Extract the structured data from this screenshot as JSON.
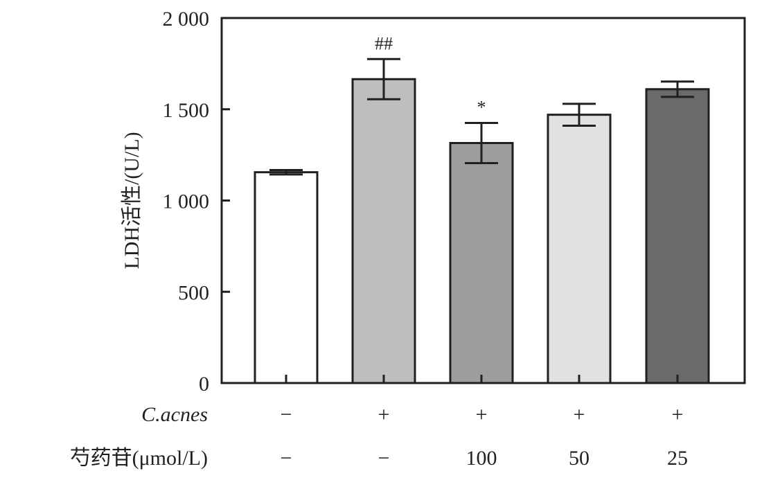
{
  "chart_data": {
    "type": "bar",
    "ylabel": "LDH活性/(U/L)",
    "ylim": [
      0,
      2000
    ],
    "yticks": [
      0,
      500,
      1000,
      1500,
      2000
    ],
    "ytick_labels": [
      "0",
      "500",
      "1 000",
      "1 500",
      "2 000"
    ],
    "grid": false,
    "bars": [
      {
        "value": 1155,
        "error": 12,
        "color": "#ffffff",
        "annotation": ""
      },
      {
        "value": 1665,
        "error": 110,
        "color": "#bcbec0",
        "annotation": "##"
      },
      {
        "value": 1315,
        "error": 110,
        "color": "#9c9d9f",
        "annotation": "*"
      },
      {
        "value": 1470,
        "error": 60,
        "color": "#e1e1e1",
        "annotation": ""
      },
      {
        "value": 1610,
        "error": 42,
        "color": "#6a6a6a",
        "annotation": ""
      }
    ],
    "condition_rows": [
      {
        "label": "C.acnes",
        "italic": true,
        "values": [
          "−",
          "+",
          "+",
          "+",
          "+"
        ]
      },
      {
        "label": "芍药苷(μmol/L)",
        "italic": false,
        "values": [
          "−",
          "−",
          "100",
          "50",
          "25"
        ]
      }
    ]
  }
}
